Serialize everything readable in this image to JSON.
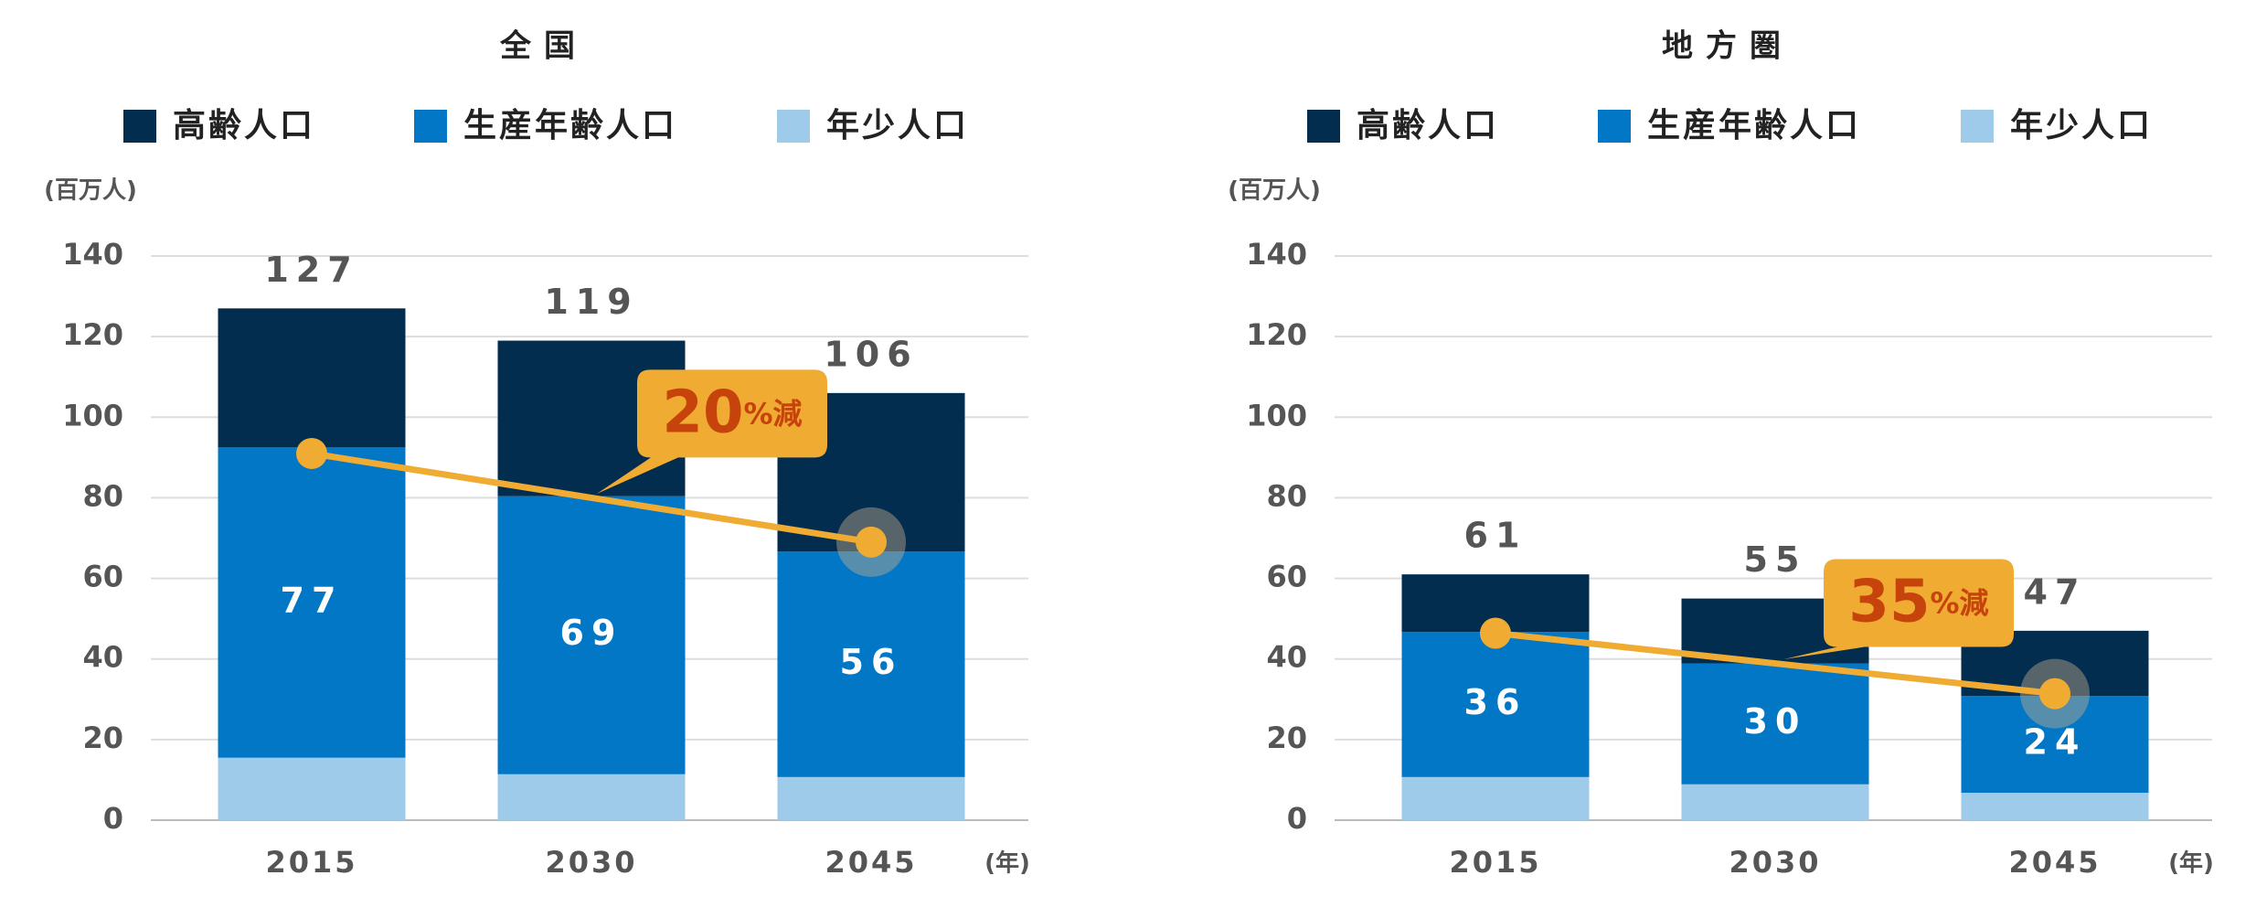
{
  "chart_data": [
    {
      "type": "bar",
      "stacked": true,
      "title": "全国",
      "y_unit": "(百万人)",
      "x_unit": "(年)",
      "categories": [
        "2015",
        "2030",
        "2045"
      ],
      "series": [
        {
          "name": "高齢人口",
          "color": "#022d4f",
          "values": [
            34.5,
            38.6,
            39.3
          ]
        },
        {
          "name": "生産年齢人口",
          "color": "#0277c6",
          "values": [
            77,
            69,
            56
          ],
          "show_labels": true
        },
        {
          "name": "年少人口",
          "color": "#9dcbe9",
          "values": [
            15.5,
            11.4,
            10.7
          ]
        }
      ],
      "totals": [
        127,
        119,
        106
      ],
      "line": {
        "color": "#f0ab33",
        "values": [
          91,
          80,
          69
        ]
      },
      "annotation": {
        "value": 20,
        "suffix": "%減"
      },
      "ylim": [
        0,
        140
      ],
      "yticks": [
        0,
        20,
        40,
        60,
        80,
        100,
        120,
        140
      ],
      "grid": true
    },
    {
      "type": "bar",
      "stacked": true,
      "title": "地方圏",
      "y_unit": "(百万人)",
      "x_unit": "(年)",
      "categories": [
        "2015",
        "2030",
        "2045"
      ],
      "series": [
        {
          "name": "高齢人口",
          "color": "#022d4f",
          "values": [
            14.3,
            16.1,
            16.2
          ]
        },
        {
          "name": "生産年齢人口",
          "color": "#0277c6",
          "values": [
            36,
            30,
            24
          ],
          "show_labels": true
        },
        {
          "name": "年少人口",
          "color": "#9dcbe9",
          "values": [
            10.7,
            8.9,
            6.8
          ]
        }
      ],
      "totals": [
        61,
        55,
        47
      ],
      "line": {
        "color": "#f0ab33",
        "values": [
          46.4,
          38.9,
          31.4
        ]
      },
      "annotation": {
        "value": 35,
        "suffix": "%減"
      },
      "ylim": [
        0,
        140
      ],
      "yticks": [
        0,
        20,
        40,
        60,
        80,
        100,
        120,
        140
      ],
      "grid": true
    }
  ]
}
